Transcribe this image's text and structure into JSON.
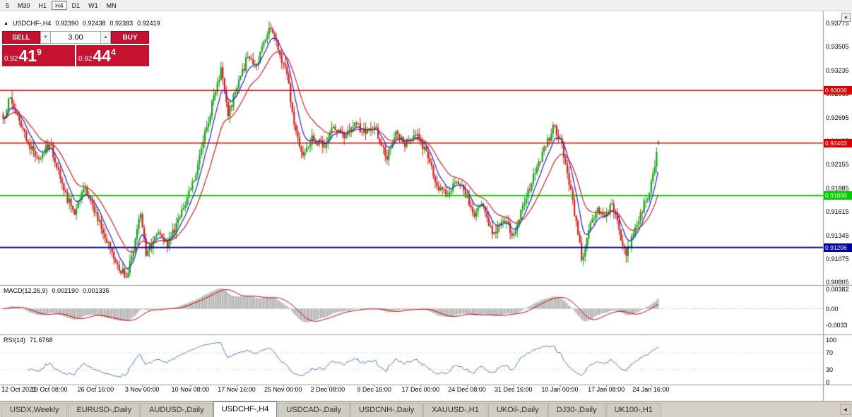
{
  "toolbar": {
    "timeframes": [
      "5",
      "M30",
      "H1",
      "H4",
      "D1",
      "W1",
      "MN"
    ],
    "active": "H4"
  },
  "chart_header": {
    "collapse_icon": "▲",
    "symbol_label": "USDCHF-,H4",
    "ohlc": [
      "0.92390",
      "0.92438",
      "0.92383",
      "0.92419"
    ]
  },
  "trade_panel": {
    "sell_label": "SELL",
    "buy_label": "BUY",
    "volume": "3.00",
    "volume_down_icon": "▼",
    "volume_up_icon": "▲",
    "sell_price": {
      "prefix": "0.92",
      "big": "41",
      "sup": "9"
    },
    "buy_price": {
      "prefix": "0.92",
      "big": "44",
      "sup": "4"
    }
  },
  "chart_data": {
    "type": "candlestick",
    "symbol": "USDCHF",
    "timeframe": "H4",
    "bars": 368,
    "colors": {
      "up": "#14a014",
      "down": "#d81b1b"
    },
    "price_anchors": [
      [
        0,
        0.9268
      ],
      [
        3,
        0.9291
      ],
      [
        8,
        0.9272
      ],
      [
        14,
        0.924
      ],
      [
        20,
        0.9222
      ],
      [
        26,
        0.9239
      ],
      [
        31,
        0.921
      ],
      [
        34,
        0.9186
      ],
      [
        40,
        0.9158
      ],
      [
        46,
        0.919
      ],
      [
        52,
        0.9161
      ],
      [
        58,
        0.9126
      ],
      [
        64,
        0.9101
      ],
      [
        69,
        0.9086
      ],
      [
        74,
        0.913
      ],
      [
        77,
        0.9159
      ],
      [
        80,
        0.9111
      ],
      [
        86,
        0.9136
      ],
      [
        92,
        0.9121
      ],
      [
        98,
        0.9154
      ],
      [
        102,
        0.9169
      ],
      [
        108,
        0.9204
      ],
      [
        113,
        0.9254
      ],
      [
        119,
        0.9299
      ],
      [
        122,
        0.9327
      ],
      [
        126,
        0.9271
      ],
      [
        131,
        0.9304
      ],
      [
        137,
        0.9339
      ],
      [
        142,
        0.933
      ],
      [
        147,
        0.9359
      ],
      [
        150,
        0.9371
      ],
      [
        155,
        0.9341
      ],
      [
        159,
        0.9319
      ],
      [
        163,
        0.9261
      ],
      [
        168,
        0.9226
      ],
      [
        173,
        0.9249
      ],
      [
        179,
        0.9236
      ],
      [
        185,
        0.9259
      ],
      [
        191,
        0.9246
      ],
      [
        197,
        0.9264
      ],
      [
        203,
        0.9251
      ],
      [
        208,
        0.9259
      ],
      [
        215,
        0.9221
      ],
      [
        220,
        0.9254
      ],
      [
        225,
        0.9236
      ],
      [
        231,
        0.9249
      ],
      [
        237,
        0.9231
      ],
      [
        242,
        0.9196
      ],
      [
        248,
        0.9179
      ],
      [
        252,
        0.9194
      ],
      [
        258,
        0.9186
      ],
      [
        264,
        0.9156
      ],
      [
        268,
        0.9171
      ],
      [
        274,
        0.9136
      ],
      [
        280,
        0.9151
      ],
      [
        286,
        0.9136
      ],
      [
        292,
        0.9171
      ],
      [
        298,
        0.9206
      ],
      [
        304,
        0.9236
      ],
      [
        308,
        0.9261
      ],
      [
        312,
        0.9246
      ],
      [
        316,
        0.9206
      ],
      [
        321,
        0.9151
      ],
      [
        324,
        0.9106
      ],
      [
        328,
        0.9141
      ],
      [
        333,
        0.9166
      ],
      [
        337,
        0.9156
      ],
      [
        341,
        0.9171
      ],
      [
        345,
        0.9141
      ],
      [
        349,
        0.9111
      ],
      [
        353,
        0.9136
      ],
      [
        357,
        0.9161
      ],
      [
        361,
        0.9176
      ],
      [
        364,
        0.9206
      ],
      [
        367,
        0.9242
      ]
    ],
    "last_bar": {
      "open": 0.9239,
      "high": 0.92438,
      "low": 0.92383,
      "close": 0.92419
    },
    "y_axis": {
      "top_value": 0.93775,
      "step": 0.0027,
      "labels": [
        "0.93775",
        "0.93505",
        "0.93235",
        "0.92965",
        "0.92695",
        "0.92425",
        "0.92155",
        "0.91885",
        "0.91615",
        "0.91345",
        "0.91075",
        "0.90805"
      ]
    },
    "hlines": [
      {
        "value": 0.93006,
        "label": "0.93006",
        "color": "#dd0000",
        "width": 1.5
      },
      {
        "value": 0.92403,
        "label": "0.92403",
        "color": "#dd0000",
        "width": 1.5
      },
      {
        "value": 0.918,
        "label": "0.91800",
        "color": "#00cc00",
        "width": 2
      },
      {
        "value": 0.91206,
        "label": "0.91206",
        "color": "#0000a0",
        "width": 2
      }
    ],
    "moving_averages": [
      {
        "type": "ema",
        "period": 8,
        "color": "#2222cc"
      },
      {
        "type": "ema",
        "period": 20,
        "color": "#cc2222"
      }
    ],
    "x_axis": [
      {
        "label": "12 Oct 2021",
        "bar": 0
      },
      {
        "label": "19 Oct 08:00",
        "bar": 26
      },
      {
        "label": "26 Oct 16:00",
        "bar": 52
      },
      {
        "label": "3 Nov 00:00",
        "bar": 78
      },
      {
        "label": "10 Nov 08:00",
        "bar": 105
      },
      {
        "label": "17 Nov 16:00",
        "bar": 131
      },
      {
        "label": "25 Nov 00:00",
        "bar": 157
      },
      {
        "label": "2 Dec 08:00",
        "bar": 182
      },
      {
        "label": "9 Dec 16:00",
        "bar": 208
      },
      {
        "label": "17 Dec 00:00",
        "bar": 234
      },
      {
        "label": "24 Dec 08:00",
        "bar": 260
      },
      {
        "label": "31 Dec 16:00",
        "bar": 286
      },
      {
        "label": "10 Jan 00:00",
        "bar": 312
      },
      {
        "label": "17 Jan 08:00",
        "bar": 338
      },
      {
        "label": "24 Jan 16:00",
        "bar": 363
      }
    ]
  },
  "macd_panel": {
    "title": "MACD(12,26,9)",
    "values": [
      "0.002190",
      "0.001335"
    ],
    "params": {
      "fast": 12,
      "slow": 26,
      "signal": 9
    },
    "axis_labels": [
      "0.00382",
      "0.00",
      "-0.0033"
    ],
    "axis_values": [
      0.00382,
      0,
      -0.0033
    ],
    "hist_color": "#b2b2b2",
    "signal_color": "#cc0000"
  },
  "rsi_panel": {
    "title": "RSI(14)",
    "value": "71.6768",
    "period": 14,
    "axis_labels": [
      "100",
      "70",
      "30",
      "0"
    ],
    "axis_values": [
      100,
      70,
      30,
      0
    ],
    "levels": [
      70,
      30
    ],
    "line_color": "#4d7ebf"
  },
  "tabs": {
    "items": [
      "USDX,Weekly",
      "EURUSD-,Daily",
      "AUDUSD-,Daily",
      "USDCHF-,H4",
      "USDCAD-,Daily",
      "USDCNH-,Daily",
      "XAUUSD-,H1",
      "UKOil-,Daily",
      "DJ30-,Daily",
      "UK100-,H1"
    ],
    "active": "USDCHF-,H4"
  },
  "scroll": {
    "up_arrow": "▲",
    "tab_nav_arrow": "◄"
  }
}
